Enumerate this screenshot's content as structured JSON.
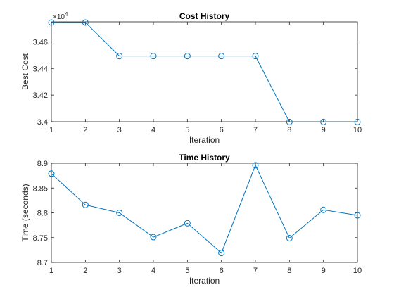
{
  "chart_data": [
    {
      "type": "line",
      "title": "Cost History",
      "xlabel": "Iteration",
      "ylabel": "Best Cost",
      "xlim": [
        1,
        10
      ],
      "ylim": [
        3.4,
        3.475
      ],
      "xticks": [
        "1",
        "2",
        "3",
        "4",
        "5",
        "6",
        "7",
        "8",
        "9",
        "10"
      ],
      "yticks": [
        "3.4",
        "3.42",
        "3.44",
        "3.46"
      ],
      "y_multiplier": {
        "base": "×10",
        "exponent": "4"
      },
      "marker": "circle",
      "color": "#0072BD",
      "grid": false,
      "series": [
        {
          "x": [
            1,
            2,
            3,
            4,
            5,
            6,
            7,
            8,
            9,
            10
          ],
          "values": [
            3.4745,
            3.4745,
            3.4493,
            3.4493,
            3.4493,
            3.4493,
            3.4493,
            3.3998,
            3.3998,
            3.3998
          ]
        }
      ]
    },
    {
      "type": "line",
      "title": "Time History",
      "xlabel": "Iteration",
      "ylabel": "Time (seconds)",
      "xlim": [
        1,
        10
      ],
      "ylim": [
        8.7,
        8.9
      ],
      "xticks": [
        "1",
        "2",
        "3",
        "4",
        "5",
        "6",
        "7",
        "8",
        "9",
        "10"
      ],
      "yticks": [
        "8.7",
        "8.75",
        "8.8",
        "8.85",
        "8.9"
      ],
      "marker": "circle",
      "color": "#0072BD",
      "grid": false,
      "series": [
        {
          "x": [
            1,
            2,
            3,
            4,
            5,
            6,
            7,
            8,
            9,
            10
          ],
          "values": [
            8.879,
            8.816,
            8.8,
            8.751,
            8.779,
            8.719,
            8.896,
            8.749,
            8.806,
            8.795
          ]
        }
      ]
    }
  ]
}
